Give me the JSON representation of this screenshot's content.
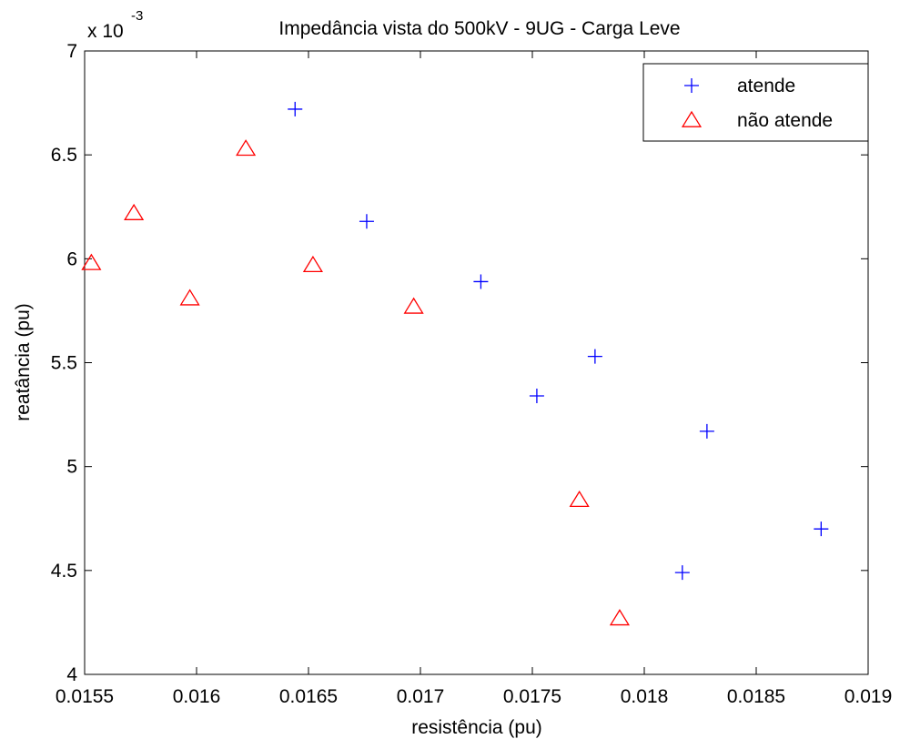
{
  "colors": {
    "background": "#ffffff",
    "axes": "#000000",
    "atende": "#0000ff",
    "nao_atende": "#ff0000"
  },
  "chart_data": {
    "type": "scatter",
    "title": "Impedância vista do 500kV - 9UG - Carga Leve",
    "xlabel": "resistência (pu)",
    "ylabel": "reatância (pu)",
    "y_exponent_label": "x 10",
    "y_exponent_power": "-3",
    "xlim": [
      0.0155,
      0.019
    ],
    "ylim": [
      4.0,
      7.0
    ],
    "y_scale_factor": 0.001,
    "xticks": [
      0.0155,
      0.016,
      0.0165,
      0.017,
      0.0175,
      0.018,
      0.0185,
      0.019
    ],
    "xtick_labels": [
      "0.0155",
      "0.016",
      "0.0165",
      "0.017",
      "0.0175",
      "0.018",
      "0.0185",
      "0.019"
    ],
    "yticks": [
      4,
      4.5,
      5,
      5.5,
      6,
      6.5,
      7
    ],
    "ytick_labels": [
      "4",
      "4.5",
      "5",
      "5.5",
      "6",
      "6.5",
      "7"
    ],
    "grid": false,
    "legend_position": "top-right",
    "series": [
      {
        "name": "atende",
        "marker": "plus",
        "color": "#0000ff",
        "points": [
          {
            "x": 0.01644,
            "y": 6.72
          },
          {
            "x": 0.01676,
            "y": 6.18
          },
          {
            "x": 0.01727,
            "y": 5.89
          },
          {
            "x": 0.01752,
            "y": 5.34
          },
          {
            "x": 0.01778,
            "y": 5.53
          },
          {
            "x": 0.01828,
            "y": 5.17
          },
          {
            "x": 0.01817,
            "y": 4.49
          },
          {
            "x": 0.01879,
            "y": 4.7
          }
        ]
      },
      {
        "name": "não atende",
        "marker": "triangle",
        "color": "#ff0000",
        "points": [
          {
            "x": 0.01553,
            "y": 5.98
          },
          {
            "x": 0.01572,
            "y": 6.22
          },
          {
            "x": 0.01597,
            "y": 5.81
          },
          {
            "x": 0.01622,
            "y": 6.53
          },
          {
            "x": 0.01652,
            "y": 5.97
          },
          {
            "x": 0.01697,
            "y": 5.77
          },
          {
            "x": 0.01771,
            "y": 4.84
          },
          {
            "x": 0.01789,
            "y": 4.27
          }
        ]
      }
    ]
  }
}
